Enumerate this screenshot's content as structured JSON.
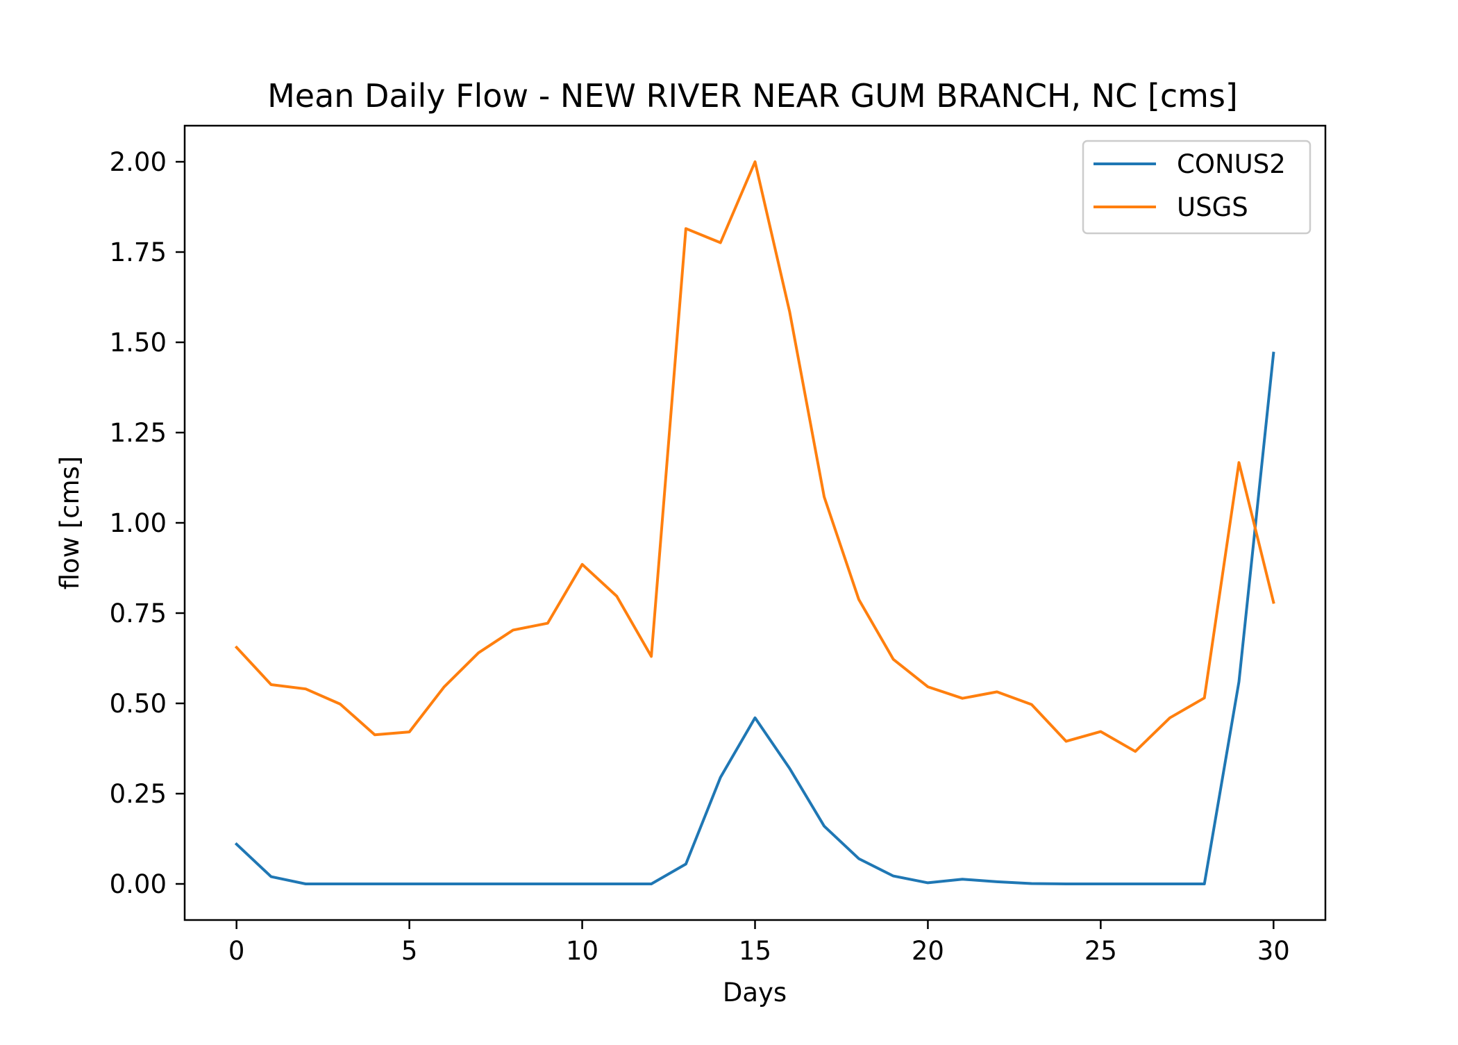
{
  "chart_data": {
    "type": "line",
    "title": "Mean Daily Flow - NEW RIVER NEAR GUM BRANCH, NC [cms]",
    "xlabel": "Days",
    "ylabel": "flow [cms]",
    "xlim": [
      -1.5,
      31.5
    ],
    "ylim": [
      -0.1,
      2.1
    ],
    "xticks": [
      0,
      5,
      10,
      15,
      20,
      25,
      30
    ],
    "xtick_labels": [
      "0",
      "5",
      "10",
      "15",
      "20",
      "25",
      "30"
    ],
    "yticks": [
      0,
      0.25,
      0.5,
      0.75,
      1.0,
      1.25,
      1.5,
      1.75,
      2.0
    ],
    "ytick_labels": [
      "0.00",
      "0.25",
      "0.50",
      "0.75",
      "1.00",
      "1.25",
      "1.50",
      "1.75",
      "2.00"
    ],
    "grid": false,
    "legend_position": "top-right",
    "x": [
      0,
      1,
      2,
      3,
      4,
      5,
      6,
      7,
      8,
      9,
      10,
      11,
      12,
      13,
      14,
      15,
      16,
      17,
      18,
      19,
      20,
      21,
      22,
      23,
      24,
      25,
      26,
      27,
      28,
      29,
      30
    ],
    "series": [
      {
        "name": "CONUS2",
        "color": "#1f77b4",
        "values": [
          0.11,
          0.02,
          0.0,
          0.0,
          0.0,
          0.0,
          0.0,
          0.0,
          0.0,
          0.0,
          0.0,
          0.0,
          0.0,
          0.055,
          0.295,
          0.46,
          0.32,
          0.16,
          0.07,
          0.022,
          0.003,
          0.013,
          0.006,
          0.001,
          0.0,
          0.0,
          0.0,
          0.0,
          0.0,
          0.56,
          1.47
        ]
      },
      {
        "name": "USGS",
        "color": "#ff7f0e",
        "values": [
          0.655,
          0.552,
          0.54,
          0.498,
          0.413,
          0.421,
          0.545,
          0.64,
          0.703,
          0.722,
          0.885,
          0.797,
          0.63,
          1.815,
          1.776,
          2.0,
          1.585,
          1.072,
          0.788,
          0.622,
          0.546,
          0.514,
          0.532,
          0.497,
          0.395,
          0.422,
          0.367,
          0.46,
          0.515,
          1.167,
          0.78
        ]
      }
    ]
  }
}
